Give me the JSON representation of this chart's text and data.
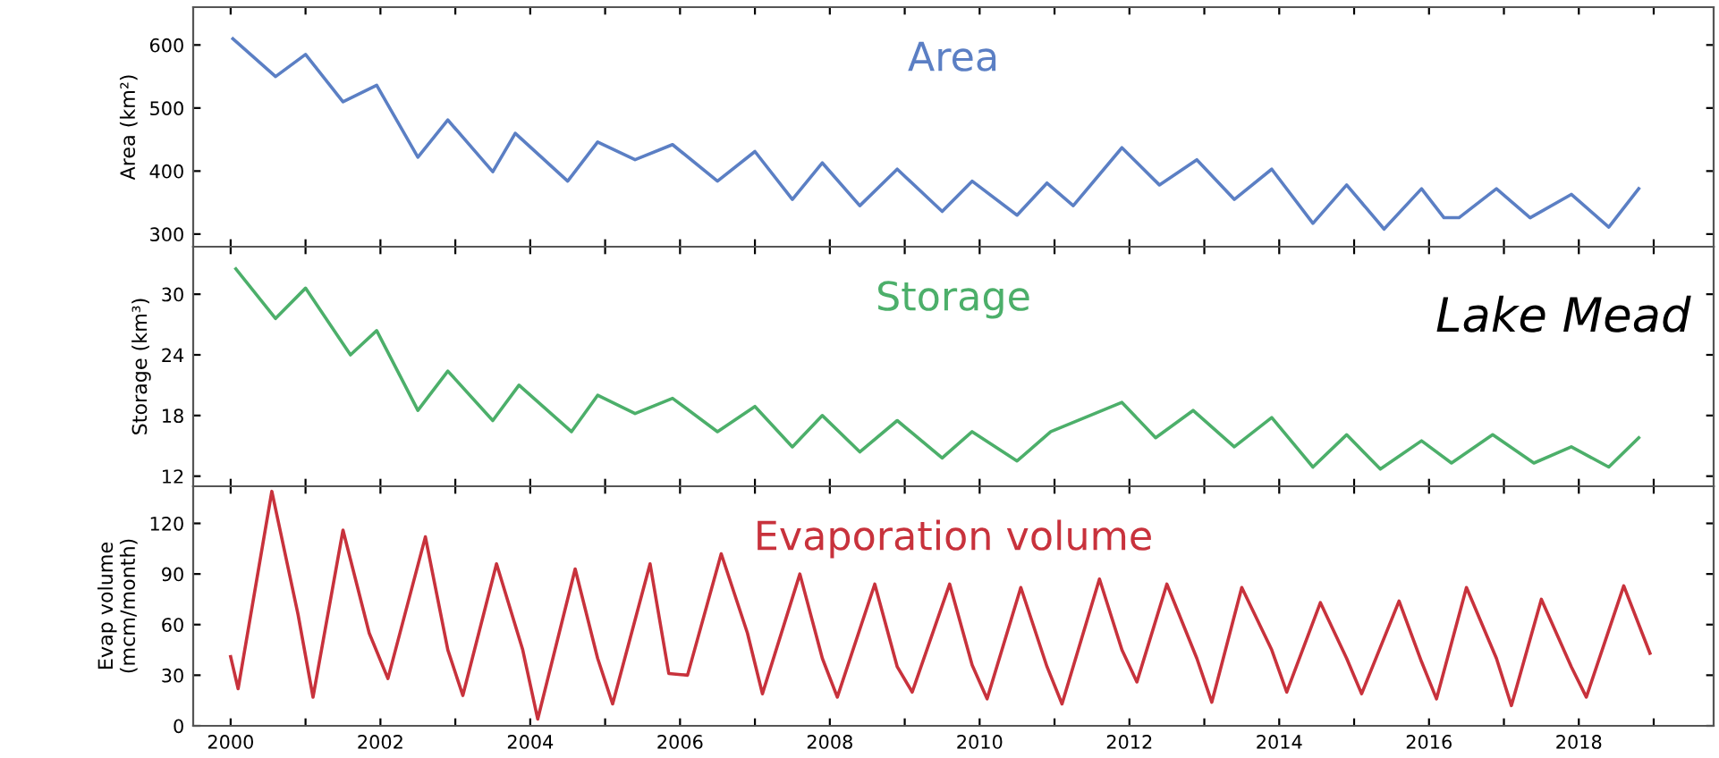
{
  "chart_data": [
    {
      "type": "line",
      "ylabel": "Area (km²)",
      "xlim": [
        1999.5,
        2019.8
      ],
      "ylim": [
        280,
        660
      ],
      "yticks": [
        300,
        400,
        500,
        600
      ],
      "tick_labels": "y",
      "grid": false,
      "legend": false,
      "xticks": [
        2000,
        {
          "value": 2001,
          "label": null
        },
        2002,
        {
          "value": 2003,
          "label": null
        },
        2004,
        {
          "value": 2005,
          "label": null
        },
        2006,
        {
          "value": 2007,
          "label": null
        },
        2008,
        {
          "value": 2009,
          "label": null
        },
        2010,
        {
          "value": 2011,
          "label": null
        },
        2012,
        {
          "value": 2013,
          "label": null
        },
        2014,
        {
          "value": 2015,
          "label": null
        },
        2016,
        {
          "value": 2017,
          "label": null
        },
        2018,
        {
          "value": 2019,
          "label": null
        }
      ],
      "series": [
        {
          "name": "Area",
          "color": "#5b7fc4",
          "x": [
            2000.03,
            2000.6,
            2001.0,
            2001.5,
            2001.95,
            2002.5,
            2002.9,
            2003.5,
            2003.8,
            2004.5,
            2004.9,
            2005.4,
            2005.9,
            2006.5,
            2007.0,
            2007.5,
            2007.9,
            2008.4,
            2008.9,
            2009.5,
            2009.9,
            2010.5,
            2010.9,
            2011.25,
            2011.9,
            2012.4,
            2012.9,
            2013.4,
            2013.9,
            2014.45,
            2014.9,
            2015.4,
            2015.9,
            2016.2,
            2016.4,
            2016.9,
            2017.35,
            2017.9,
            2018.4,
            2018.8
          ],
          "values": [
            610,
            550,
            585,
            510,
            536,
            422,
            481,
            399,
            460,
            384,
            446,
            418,
            442,
            384,
            431,
            355,
            413,
            345,
            403,
            336,
            384,
            330,
            381,
            345,
            437,
            378,
            418,
            355,
            403,
            317,
            378,
            308,
            372,
            326,
            326,
            372,
            326,
            363,
            311,
            372
          ]
        }
      ]
    },
    {
      "type": "line",
      "ylabel": "Storage (km³)",
      "xlim": [
        1999.5,
        2019.8
      ],
      "ylim": [
        11,
        34.7
      ],
      "yticks": [
        12,
        18,
        24,
        30
      ],
      "tick_labels": "y",
      "grid": false,
      "legend": false,
      "xticks": [
        2000,
        {
          "value": 2001,
          "label": null
        },
        2002,
        {
          "value": 2003,
          "label": null
        },
        2004,
        {
          "value": 2005,
          "label": null
        },
        2006,
        {
          "value": 2007,
          "label": null
        },
        2008,
        {
          "value": 2009,
          "label": null
        },
        2010,
        {
          "value": 2011,
          "label": null
        },
        2012,
        {
          "value": 2013,
          "label": null
        },
        2014,
        {
          "value": 2015,
          "label": null
        },
        2016,
        {
          "value": 2017,
          "label": null
        },
        2018,
        {
          "value": 2019,
          "label": null
        }
      ],
      "annotations": [
        "Lake Mead"
      ],
      "series": [
        {
          "name": "Storage",
          "color": "#4caf6a",
          "x": [
            2000.07,
            2000.6,
            2001.0,
            2001.6,
            2001.95,
            2002.5,
            2002.9,
            2003.5,
            2003.85,
            2004.55,
            2004.9,
            2005.4,
            2005.9,
            2006.5,
            2007.0,
            2007.5,
            2007.9,
            2008.4,
            2008.9,
            2009.5,
            2009.9,
            2010.5,
            2010.95,
            2011.9,
            2012.35,
            2012.85,
            2013.4,
            2013.9,
            2014.45,
            2014.9,
            2015.35,
            2015.9,
            2016.3,
            2016.85,
            2017.4,
            2017.9,
            2018.4,
            2018.8
          ],
          "values": [
            32.5,
            27.6,
            30.6,
            24,
            26.4,
            18.5,
            22.4,
            17.5,
            21,
            16.4,
            20,
            18.2,
            19.7,
            16.4,
            18.9,
            14.9,
            18,
            14.4,
            17.5,
            13.8,
            16.4,
            13.5,
            16.4,
            19.3,
            15.8,
            18.5,
            14.9,
            17.8,
            12.9,
            16.1,
            12.7,
            15.5,
            13.3,
            16.1,
            13.3,
            14.9,
            12.9,
            15.8
          ]
        }
      ]
    },
    {
      "type": "line",
      "ylabel": "Evap volume\n(mcm/month)",
      "xlim": [
        1999.5,
        2019.8
      ],
      "ylim": [
        0,
        142
      ],
      "yticks": [
        0,
        30,
        60,
        90,
        120
      ],
      "grid": false,
      "legend": false,
      "xticks": [
        2000,
        {
          "value": 2001,
          "label": null
        },
        2002,
        {
          "value": 2003,
          "label": null
        },
        2004,
        {
          "value": 2005,
          "label": null
        },
        2006,
        {
          "value": 2007,
          "label": null
        },
        2008,
        {
          "value": 2009,
          "label": null
        },
        2010,
        {
          "value": 2011,
          "label": null
        },
        2012,
        {
          "value": 2013,
          "label": null
        },
        2014,
        {
          "value": 2015,
          "label": null
        },
        2016,
        {
          "value": 2017,
          "label": null
        },
        2018,
        {
          "value": 2019,
          "label": null
        }
      ],
      "series": [
        {
          "name": "Evaporation volume",
          "color": "#c8323c",
          "x": [
            2000.0,
            2000.1,
            2000.55,
            2000.9,
            2001.1,
            2001.5,
            2001.85,
            2002.1,
            2002.6,
            2002.9,
            2003.1,
            2003.55,
            2003.9,
            2004.1,
            2004.6,
            2004.9,
            2005.1,
            2005.6,
            2005.85,
            2006.1,
            2006.55,
            2006.9,
            2007.1,
            2007.6,
            2007.9,
            2008.1,
            2008.6,
            2008.9,
            2009.1,
            2009.6,
            2009.9,
            2010.1,
            2010.55,
            2010.9,
            2011.1,
            2011.6,
            2011.9,
            2012.1,
            2012.5,
            2012.9,
            2013.1,
            2013.5,
            2013.9,
            2014.1,
            2014.55,
            2014.9,
            2015.1,
            2015.6,
            2015.9,
            2016.1,
            2016.5,
            2016.9,
            2017.1,
            2017.5,
            2017.9,
            2018.1,
            2018.6,
            2018.95
          ],
          "values": [
            41,
            22,
            139,
            66,
            17,
            116,
            55,
            28,
            112,
            45,
            18,
            96,
            45,
            4,
            93,
            40,
            13,
            96,
            31,
            30,
            102,
            55,
            19,
            90,
            40,
            17,
            84,
            35,
            20,
            84,
            36,
            16,
            82,
            35,
            13,
            87,
            45,
            26,
            84,
            40,
            14,
            82,
            45,
            20,
            73,
            40,
            19,
            74,
            38,
            16,
            82,
            40,
            12,
            75,
            35,
            17,
            83,
            43
          ]
        }
      ]
    }
  ]
}
